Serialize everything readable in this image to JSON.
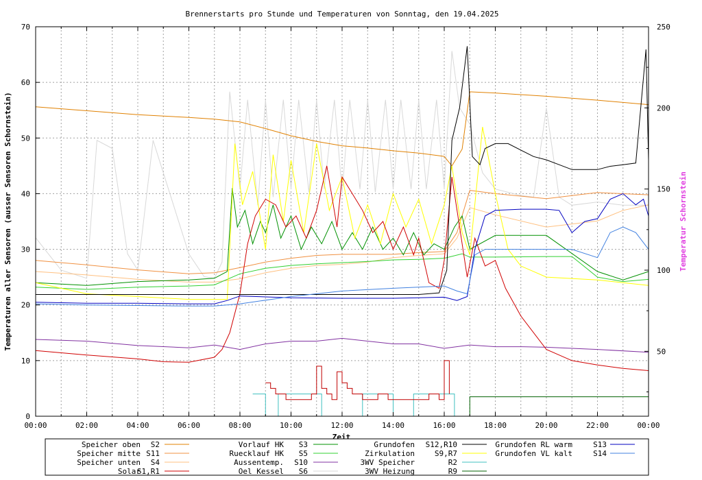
{
  "chart_data": {
    "type": "line",
    "title": "Brennerstarts pro Stunde und Temperaturen von Sonntag, den 19.04.2025",
    "xlabel": "Zeit",
    "ylabel": "Temperaturen aller Sensoren (ausser Sensoren Schornstein)",
    "y2label": "Temperatur Schornstein",
    "xlim": [
      0,
      24
    ],
    "ylim": [
      0,
      70
    ],
    "y2lim": [
      10,
      250
    ],
    "x_ticks": [
      "00:00",
      "02:00",
      "04:00",
      "06:00",
      "08:00",
      "10:00",
      "12:00",
      "14:00",
      "16:00",
      "18:00",
      "20:00",
      "22:00",
      "00:00"
    ],
    "y_ticks": [
      "0",
      "10",
      "20",
      "30",
      "40",
      "50",
      "60",
      "70"
    ],
    "y2_ticks": [
      "50",
      "100",
      "150",
      "200",
      "250"
    ],
    "grid": true,
    "legend_position": "bottom",
    "series": [
      {
        "name": "Speicher oben   S2",
        "label": "Speicher oben",
        "code": "S2",
        "color": "#e08000",
        "axis": "y",
        "x": [
          0,
          2,
          4,
          6,
          7,
          8,
          9,
          10,
          11,
          12,
          13,
          14,
          15,
          16,
          16.3,
          16.7,
          17,
          18,
          20,
          22,
          24
        ],
        "y": [
          55.6,
          54.9,
          54.2,
          53.7,
          53.4,
          52.9,
          51.7,
          50.4,
          49.4,
          48.6,
          48.2,
          47.7,
          47.3,
          46.7,
          45,
          48,
          58.3,
          58.1,
          57.5,
          56.8,
          56
        ]
      },
      {
        "name": "Speicher mitte S11",
        "label": "Speicher mitte",
        "code": "S11",
        "color": "#f09040",
        "axis": "y",
        "x": [
          0,
          2,
          4,
          6,
          7,
          8,
          9,
          10,
          11,
          12,
          13,
          14,
          15,
          16,
          16.5,
          17,
          18,
          20,
          22,
          24
        ],
        "y": [
          28,
          27.2,
          26.3,
          25.6,
          25.8,
          26.7,
          27.7,
          28.4,
          28.9,
          29.1,
          29.1,
          29.1,
          29.4,
          29.6,
          33,
          40.6,
          40,
          39.1,
          40.2,
          39.8
        ]
      },
      {
        "name": "Speicher unten S4",
        "label": "Speicher unten",
        "code": "S4",
        "color": "#ffc080",
        "axis": "y",
        "x": [
          0,
          2,
          4,
          6,
          7,
          8,
          9,
          10,
          11,
          12,
          13,
          14,
          15,
          16,
          16.5,
          17,
          18,
          20,
          22,
          23,
          24
        ],
        "y": [
          26,
          25.4,
          24.6,
          24.1,
          24.1,
          24.7,
          25.8,
          26.6,
          27.1,
          27.3,
          27.7,
          28.5,
          28.9,
          29.2,
          32,
          37.5,
          36.2,
          34,
          35.1,
          37,
          38
        ]
      },
      {
        "name": "Solar       S1,R1",
        "label": "Solar",
        "code": "S1,R1",
        "color": "#d00000",
        "axis": "y",
        "x": [
          0,
          2,
          4,
          5,
          6,
          7,
          7.3,
          7.6,
          8,
          8.3,
          8.6,
          9,
          9.4,
          9.8,
          10.2,
          10.6,
          11,
          11.4,
          11.8,
          12,
          12.4,
          12.8,
          13.2,
          13.6,
          14,
          14.4,
          14.8,
          15,
          15.4,
          15.8,
          16,
          16.3,
          16.6,
          16.9,
          17.2,
          17.6,
          18,
          18.4,
          19,
          20,
          21,
          22,
          23,
          24
        ],
        "y": [
          11.8,
          11,
          10.3,
          9.8,
          9.7,
          10.6,
          12,
          15,
          22,
          31,
          36,
          39,
          38,
          34,
          36,
          32,
          37,
          45,
          34,
          43,
          40,
          37,
          33,
          35,
          30,
          34,
          29,
          32,
          24,
          23,
          28,
          43,
          34,
          25,
          32,
          27,
          28,
          23,
          18,
          12,
          10,
          9.2,
          8.6,
          8.2
        ]
      },
      {
        "name": "Vorlauf HK     S3",
        "label": "Vorlauf HK",
        "code": "S3",
        "color": "#009000",
        "axis": "y",
        "x": [
          0,
          2,
          4,
          6,
          7,
          7.5,
          7.7,
          7.9,
          8.2,
          8.5,
          8.8,
          9,
          9.3,
          9.6,
          10,
          10.4,
          10.8,
          11.2,
          11.6,
          12,
          12.4,
          12.8,
          13.2,
          13.6,
          14,
          14.4,
          14.8,
          15.2,
          15.6,
          16,
          16.4,
          16.7,
          17,
          18,
          20,
          22,
          23,
          24
        ],
        "y": [
          24,
          23.5,
          24.2,
          24.5,
          24.8,
          26,
          41,
          34,
          37,
          31,
          35,
          33,
          38,
          32,
          36,
          30,
          34,
          31,
          35,
          30,
          33,
          30,
          34,
          30,
          32,
          29,
          33,
          29,
          31,
          30,
          34,
          36,
          30,
          32.5,
          32.5,
          26,
          24.5,
          26
        ]
      },
      {
        "name": "Ruecklauf HK   S5",
        "label": "Ruecklauf HK",
        "code": "S5",
        "color": "#30d030",
        "axis": "y",
        "x": [
          0,
          2,
          4,
          6,
          7,
          8,
          9,
          10,
          11,
          12,
          13,
          14,
          15,
          16,
          16.7,
          17,
          18,
          20,
          21,
          22,
          23,
          24
        ],
        "y": [
          23.2,
          22.8,
          23.2,
          23.4,
          23.6,
          25.6,
          26.6,
          27.1,
          27.4,
          27.6,
          27.8,
          28.1,
          28.2,
          28.4,
          29.2,
          28.6,
          28.6,
          28.7,
          28.7,
          25,
          24.2,
          24.6
        ]
      },
      {
        "name": "Aussentemp.   S10",
        "label": "Aussentemp.",
        "code": "S10",
        "color": "#8030a0",
        "axis": "y",
        "x": [
          0,
          2,
          4,
          6,
          7,
          8,
          9,
          10,
          11,
          12,
          13,
          14,
          15,
          16,
          17,
          18,
          19,
          20,
          22,
          24
        ],
        "y": [
          13.8,
          13.5,
          12.7,
          12.3,
          12.8,
          12,
          13,
          13.5,
          13.5,
          14,
          13.5,
          13,
          13,
          12.2,
          12.8,
          12.5,
          12.5,
          12.4,
          12,
          11.5
        ]
      },
      {
        "name": "Oel Kessel     S6",
        "label": "Oel Kessel",
        "code": "S6",
        "color": "#d8d8d8",
        "axis": "y2",
        "x": [
          0,
          1,
          2,
          2.4,
          3,
          3.6,
          4,
          4.6,
          5.2,
          6,
          6.6,
          7,
          7.3,
          7.6,
          8,
          8.3,
          8.7,
          9,
          9.3,
          9.7,
          10,
          10.3,
          10.7,
          11,
          11.3,
          11.7,
          12,
          12.3,
          12.7,
          13,
          13.3,
          13.7,
          14,
          14.3,
          14.7,
          15,
          15.3,
          15.7,
          16,
          16.3,
          16.6,
          17,
          17.5,
          18,
          18.5,
          19,
          19.5,
          20,
          20.5,
          21,
          22,
          23,
          24
        ],
        "y": [
          120,
          100,
          95,
          180,
          175,
          110,
          100,
          180,
          150,
          110,
          96,
          95,
          105,
          210,
          150,
          205,
          140,
          205,
          145,
          205,
          150,
          205,
          148,
          205,
          150,
          205,
          148,
          205,
          150,
          205,
          148,
          205,
          150,
          205,
          150,
          205,
          150,
          205,
          150,
          235,
          200,
          190,
          160,
          150,
          148,
          146,
          145,
          200,
          145,
          140,
          142,
          140,
          140
        ]
      },
      {
        "name": "Grundofen    S12,R10",
        "label": "Grundofen",
        "code": "S12,R10",
        "color": "#000000",
        "axis": "y2",
        "x": [
          0,
          2,
          4,
          6,
          8,
          10,
          12,
          14,
          15,
          15.8,
          16.1,
          16.3,
          16.6,
          16.9,
          17.1,
          17.4,
          17.6,
          18,
          18.5,
          19,
          19.5,
          20,
          20.5,
          21,
          21.5,
          22,
          22.5,
          23,
          23.5,
          23.9,
          24
        ],
        "y": [
          85,
          85,
          85,
          85,
          85,
          85,
          85,
          85,
          85,
          86,
          100,
          180,
          200,
          238,
          170,
          165,
          175,
          178,
          178,
          174,
          170,
          168,
          165,
          162,
          162,
          162,
          164,
          165,
          166,
          236,
          168
        ]
      },
      {
        "name": "Zirkulation  S9,R7",
        "label": "Zirkulation",
        "code": "S9,R7",
        "color": "#ffff00",
        "axis": "y",
        "x": [
          0,
          2,
          4,
          6,
          7,
          7.5,
          7.8,
          8.1,
          8.5,
          9,
          9.3,
          9.7,
          10,
          10.5,
          11,
          11.5,
          12,
          12.5,
          13,
          13.5,
          14,
          14.5,
          15,
          15.5,
          16,
          16.3,
          16.7,
          17,
          17.5,
          18,
          18.5,
          19,
          20,
          22,
          24
        ],
        "y": [
          24,
          22,
          21.5,
          21,
          21,
          21,
          49,
          38,
          44,
          30,
          47,
          35,
          46,
          33,
          49,
          37,
          43,
          32,
          38,
          31,
          40,
          34,
          39,
          31,
          38,
          45,
          33,
          29,
          52,
          40,
          30,
          27,
          25,
          24.5,
          23.5
        ]
      },
      {
        "name": "3WV Speicher     R2",
        "label": "3WV Speicher",
        "code": "R2",
        "color": "#40c0c0",
        "axis": "y",
        "x": [
          8.5,
          8.9,
          9,
          9.4,
          9.5,
          11,
          11.2,
          12.6,
          12.8,
          13.8,
          14,
          14.6,
          14.8,
          16.2,
          16.4
        ],
        "y": [
          4,
          4,
          0,
          0,
          4,
          4,
          0,
          0,
          4,
          4,
          0,
          0,
          4,
          4,
          0
        ]
      },
      {
        "name": "3WV Heizung    R9",
        "label": "3WV Heizung",
        "code": "R9",
        "color": "#006000",
        "axis": "y",
        "x": [
          16.9,
          17,
          24
        ],
        "y": [
          0,
          3.5,
          3.5
        ]
      },
      {
        "name": "Grundofen RL warm    S13",
        "label": "Grundofen RL warm",
        "code": "S13",
        "color": "#0000c0",
        "axis": "y",
        "x": [
          0,
          2,
          4,
          6,
          7,
          7.5,
          8,
          10,
          12,
          14,
          15,
          16,
          16.5,
          16.9,
          17.2,
          17.6,
          18,
          19,
          20,
          20.5,
          21,
          21.5,
          22,
          22.5,
          23,
          23.5,
          23.8,
          24
        ],
        "y": [
          20.5,
          20.3,
          20.3,
          20.2,
          20.2,
          20.8,
          21.6,
          21.3,
          21.2,
          21.2,
          21.3,
          21.4,
          20.8,
          21.5,
          30,
          36,
          37,
          37.2,
          37.2,
          37,
          33,
          35,
          35.5,
          39,
          40,
          38,
          39,
          36
        ]
      },
      {
        "name": "Grundofen VL kalt    S14",
        "label": "Grundofen VL kalt",
        "code": "S14",
        "color": "#4080e0",
        "axis": "y",
        "x": [
          0,
          2,
          4,
          6,
          7,
          8,
          10,
          12,
          14,
          15,
          16,
          16.5,
          16.9,
          17.2,
          17.6,
          18,
          19,
          20,
          21,
          22,
          22.5,
          23,
          23.5,
          24
        ],
        "y": [
          20.2,
          20,
          19.9,
          19.8,
          19.8,
          20.2,
          21.5,
          22.5,
          23,
          23.2,
          23.4,
          22.5,
          22,
          29,
          30,
          30,
          30,
          30,
          30,
          28.5,
          33,
          34,
          33,
          30
        ]
      },
      {
        "name": "Brennerstarts",
        "label": "",
        "code": "",
        "color": "#c00000",
        "axis": "y",
        "x": [
          9,
          9.2,
          9.4,
          9.6,
          9.8,
          10,
          10.2,
          10.4,
          10.6,
          10.8,
          11,
          11.2,
          11.4,
          11.6,
          11.8,
          12,
          12.2,
          12.4,
          12.6,
          12.8,
          13,
          13.2,
          13.4,
          13.6,
          13.8,
          14,
          14.2,
          14.4,
          14.6,
          14.8,
          15,
          15.2,
          15.4,
          15.6,
          15.8,
          16,
          16.2
        ],
        "y": [
          6,
          5,
          4,
          4,
          3,
          3,
          3,
          3,
          3,
          4,
          9,
          5,
          4,
          3,
          8,
          6,
          5,
          4,
          4,
          3,
          3,
          3,
          4,
          4,
          3,
          3,
          3,
          3,
          3,
          3,
          3,
          3,
          4,
          4,
          3,
          10,
          4
        ]
      }
    ]
  }
}
